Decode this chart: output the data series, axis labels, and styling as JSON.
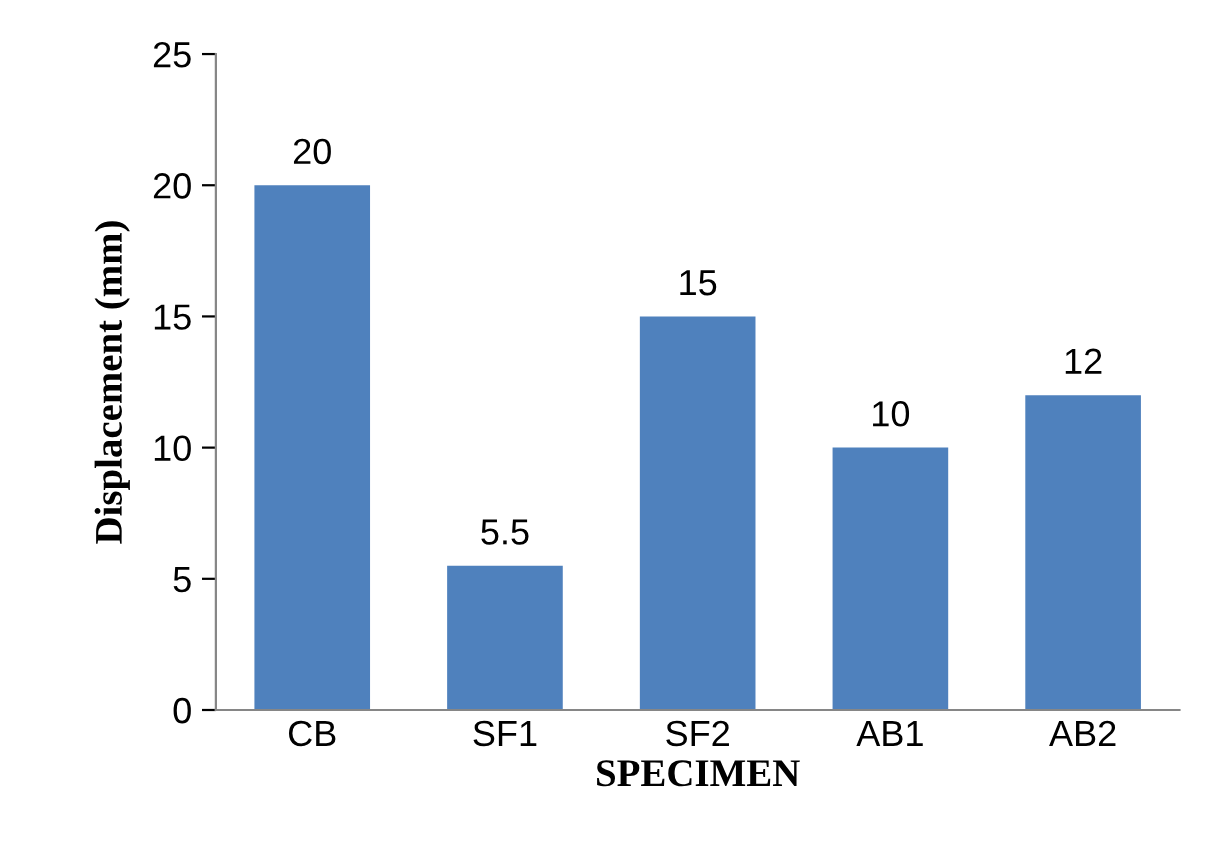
{
  "chart_data": {
    "type": "bar",
    "xlabel": "SPECIMEN",
    "ylabel": "Displacement (mm)",
    "categories": [
      "CB",
      "SF1",
      "SF2",
      "AB1",
      "AB2"
    ],
    "values": [
      20,
      5.5,
      15,
      10,
      12
    ],
    "color": "#4f81bd",
    "ylim": [
      0,
      25
    ],
    "yticks": [
      0,
      5,
      10,
      15,
      20,
      25
    ],
    "grid": false,
    "data_labels": true
  }
}
